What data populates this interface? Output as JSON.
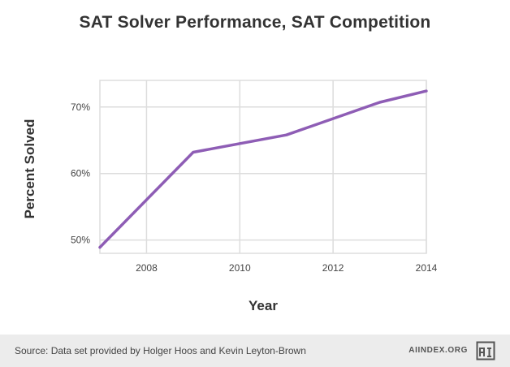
{
  "chart_data": {
    "type": "line",
    "title": "SAT Solver Performance, SAT Competition",
    "xlabel": "Year",
    "ylabel": "Percent Solved",
    "x": [
      2007,
      2009,
      2011,
      2013,
      2014
    ],
    "series": [
      {
        "values": [
          48.9,
          63.2,
          65.8,
          70.7,
          72.4
        ],
        "color": "#8e5db5"
      }
    ],
    "xlim": [
      2007,
      2014
    ],
    "ylim": [
      48,
      74
    ],
    "x_ticks": [
      2008,
      2010,
      2012,
      2014
    ],
    "x_tick_labels": [
      "2008",
      "2010",
      "2012",
      "2014"
    ],
    "y_ticks": [
      50,
      60,
      70
    ],
    "y_tick_labels": [
      "50%",
      "60%",
      "70%"
    ],
    "grid": true,
    "grid_color": "#dddddd"
  },
  "footer": {
    "source": "Source: Data set provided by Holger Hoos and Kevin Leyton-Brown",
    "brand": "AIINDEX.ORG",
    "logo_icon": "ai-index-logo-icon"
  }
}
